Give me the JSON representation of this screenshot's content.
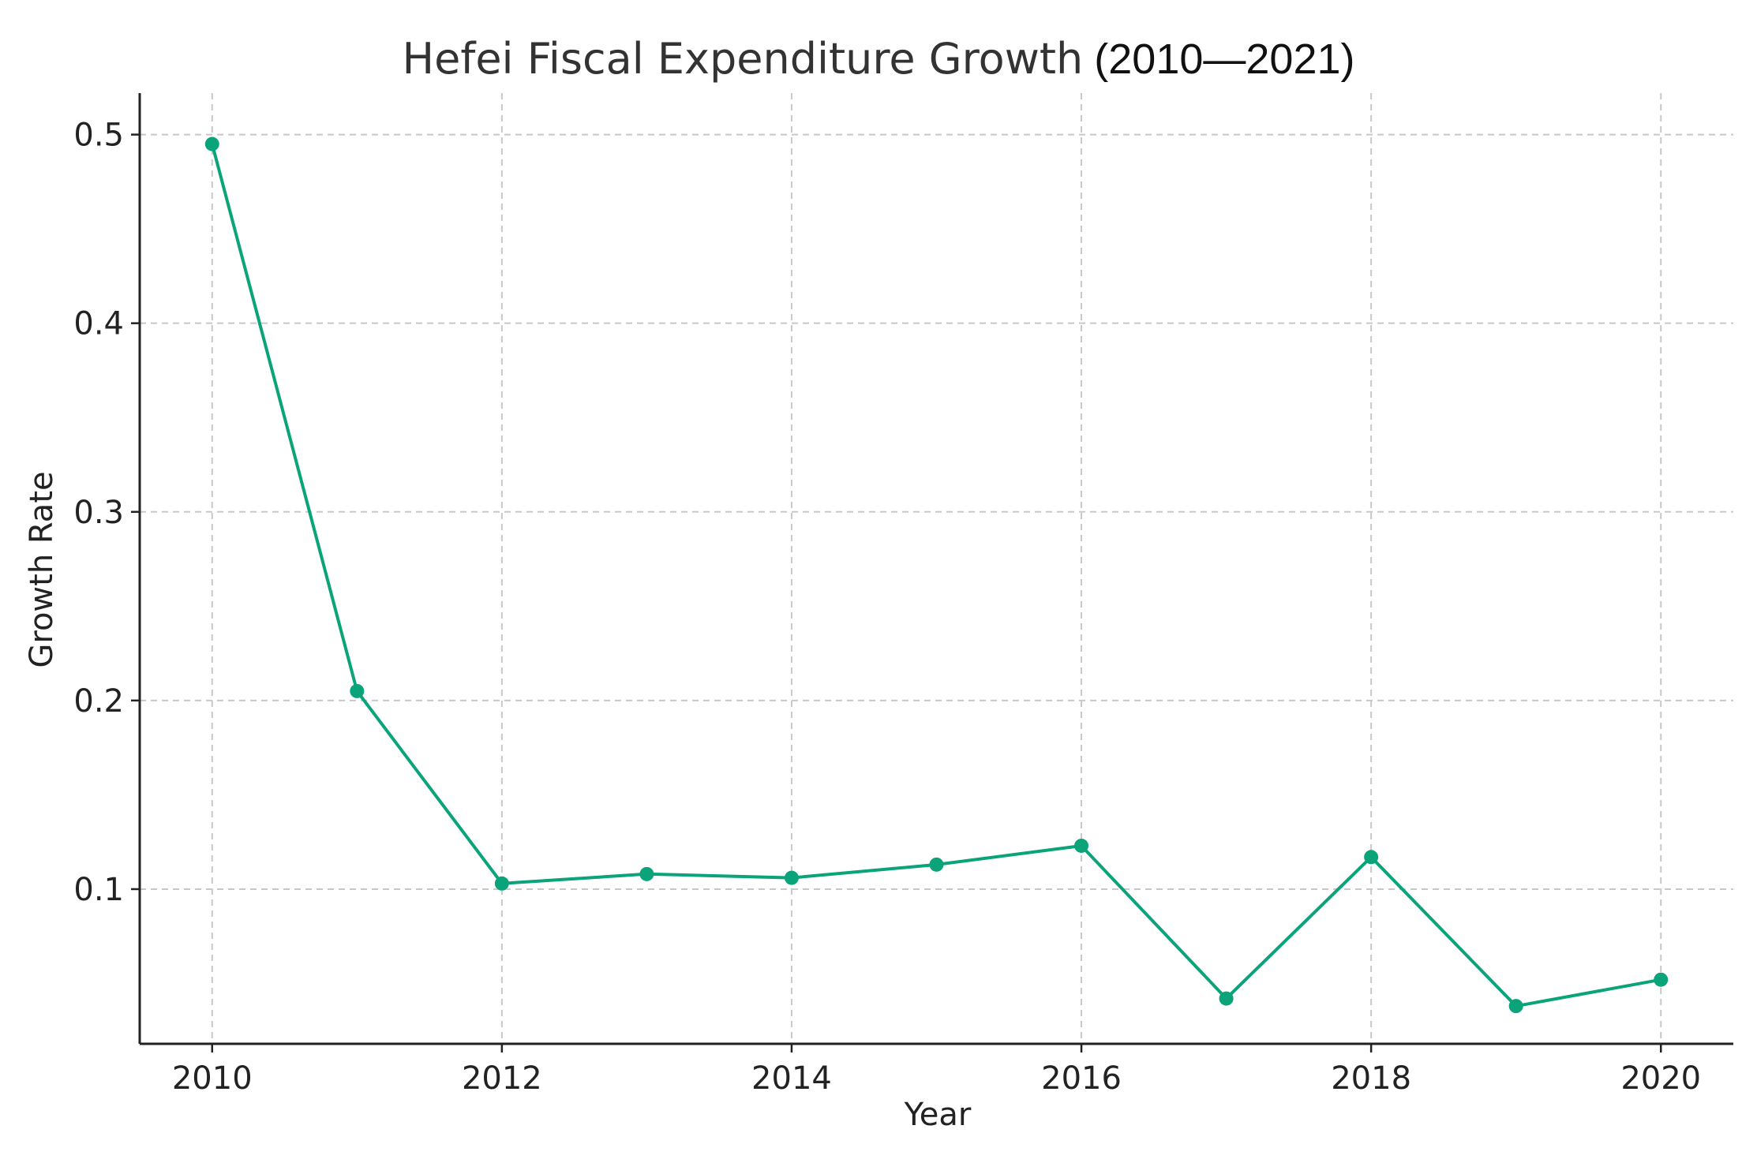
{
  "chart_data": {
    "type": "line",
    "title": "Hefei Fiscal Expenditure Growth",
    "title_suffix": "(2010—2021)",
    "xlabel": "Year",
    "ylabel": "Growth Rate",
    "xlim": [
      2009.5,
      2020.5
    ],
    "ylim": [
      0.018,
      0.522
    ],
    "xticks": [
      2010,
      2012,
      2014,
      2016,
      2018,
      2020
    ],
    "yticks": [
      0.1,
      0.2,
      0.3,
      0.4,
      0.5
    ],
    "grid": true,
    "series": [
      {
        "name": "Growth Rate",
        "color": "#0aa37a",
        "x": [
          2010,
          2011,
          2012,
          2013,
          2014,
          2015,
          2016,
          2017,
          2018,
          2019,
          2020
        ],
        "values": [
          0.495,
          0.205,
          0.103,
          0.108,
          0.106,
          0.113,
          0.123,
          0.042,
          0.117,
          0.038,
          0.052
        ]
      }
    ]
  }
}
